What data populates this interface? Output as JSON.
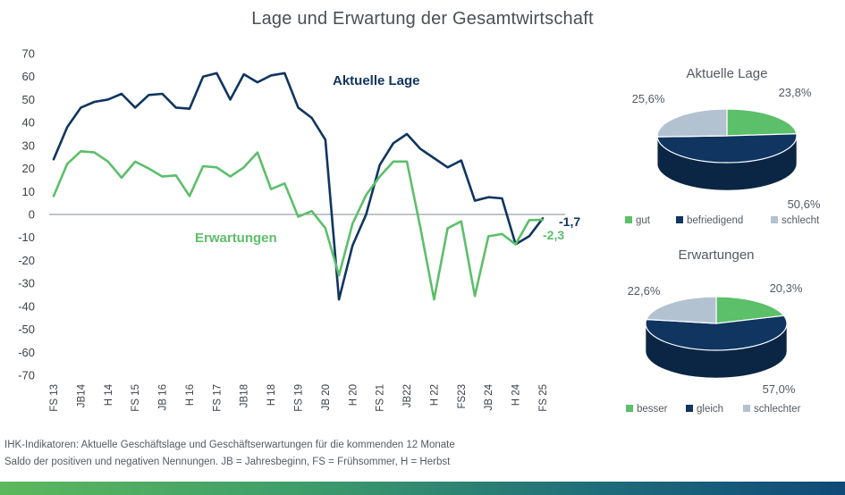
{
  "title": "Lage und Erwartung der Gesamtwirtschaft",
  "colors": {
    "lage": "#0f3560",
    "erwartungen": "#5cbf6a",
    "gut": "#5cbf6a",
    "befriedigend": "#0f3560",
    "schlecht": "#b3c2d1",
    "zero_line": "#9aa0a6"
  },
  "chart_data": [
    {
      "type": "line",
      "title": "Lage und Erwartung der Gesamtwirtschaft",
      "ylim": [
        -70,
        70
      ],
      "yticks": [
        70,
        60,
        50,
        40,
        30,
        20,
        10,
        0,
        -10,
        -20,
        -30,
        -40,
        -50,
        -60,
        -70
      ],
      "x_tick_labels": [
        "FS 13",
        "JB14",
        "H 14",
        "FS 15",
        "JB 16",
        "H 16",
        "FS 17",
        "JB18",
        "H 18",
        "FS 19",
        "JB 20",
        "H 20",
        "FS 21",
        "JB22",
        "H 22",
        "FS23",
        "JB 24",
        "H 24",
        "FS 25"
      ],
      "series": [
        {
          "name": "Aktuelle Lage",
          "label": "Aktuelle Lage",
          "values": [
            24,
            38,
            46.5,
            49,
            50,
            52.5,
            46.5,
            52,
            52.5,
            46.5,
            46,
            60,
            61.5,
            50,
            61,
            57.5,
            60.5,
            61.5,
            46.5,
            42,
            32.5,
            -37,
            -13.5,
            0,
            21.5,
            31,
            35,
            28.5,
            24.5,
            20.5,
            23.5,
            6,
            7.5,
            7,
            -13,
            -9.5,
            -1.7
          ],
          "end_label": "-1,7"
        },
        {
          "name": "Erwartungen",
          "label": "Erwartungen",
          "values": [
            8,
            22,
            27.5,
            27,
            23,
            16,
            23,
            20,
            16.5,
            17,
            8,
            21,
            20.5,
            16.5,
            20.5,
            27,
            11,
            13.5,
            -1,
            1.5,
            -6,
            -26.5,
            -4,
            8.5,
            16.5,
            23,
            23,
            -6,
            -37,
            -6,
            -3,
            -35.5,
            -9.5,
            -8.5,
            -13,
            -2.5,
            -2.3
          ],
          "end_label": "-2,3"
        }
      ]
    },
    {
      "type": "pie",
      "title": "Aktuelle Lage",
      "labels": [
        "gut",
        "befriedigend",
        "schlecht"
      ],
      "values": [
        23.8,
        50.6,
        25.6
      ],
      "value_labels": [
        "23,8%",
        "50,6%",
        "25,6%"
      ]
    },
    {
      "type": "pie",
      "title": "Erwartungen",
      "labels": [
        "besser",
        "gleich",
        "schlechter"
      ],
      "values": [
        20.3,
        57.0,
        22.6
      ],
      "value_labels": [
        "20,3%",
        "57,0%",
        "22,6%"
      ]
    }
  ],
  "footnote": {
    "line1": "IHK-Indikatoren: Aktuelle Geschäftslage und Geschäftserwartungen für die kommenden 12 Monate",
    "line2": "Saldo der positiven und negativen Nennungen. JB = Jahresbeginn, FS = Frühsommer, H = Herbst"
  }
}
